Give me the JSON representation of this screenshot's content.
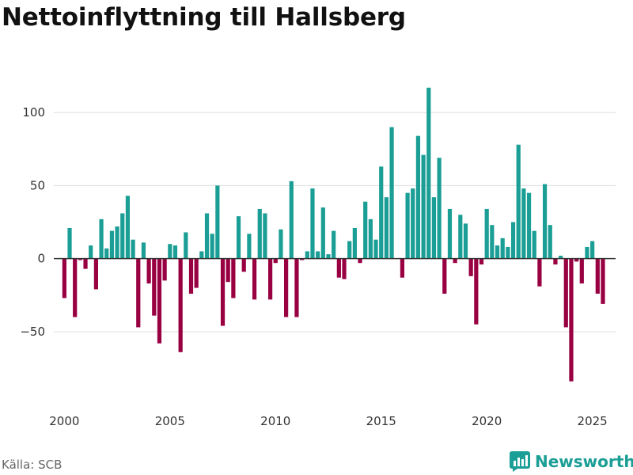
{
  "header": {
    "title": "Nettoinflyttning till Hallsberg"
  },
  "footer": {
    "source": "Källa: SCB",
    "brand": "Newsworthy"
  },
  "colors": {
    "positive": "#1a9e95",
    "negative": "#990042",
    "grid": "#dddddd",
    "zero_line": "#333333",
    "axis_text": "#333333"
  },
  "chart_data": {
    "type": "bar",
    "title": "Nettoinflyttning till Hallsberg",
    "xlabel": "",
    "ylabel": "",
    "ylim": [
      -95,
      125
    ],
    "yticks": [
      -50,
      0,
      50,
      100
    ],
    "ytick_labels": [
      "−50",
      "0",
      "50",
      "100"
    ],
    "xlim": [
      1999.5,
      2026.1
    ],
    "xticks": [
      2000,
      2005,
      2010,
      2015,
      2020,
      2025
    ],
    "xtick_labels": [
      "2000",
      "2005",
      "2010",
      "2015",
      "2020",
      "2025"
    ],
    "grid": true,
    "frequency": "quarterly",
    "start": 2000,
    "values": [
      -27,
      21,
      -40,
      -1,
      -7,
      9,
      -21,
      27,
      7,
      19,
      22,
      31,
      43,
      13,
      -47,
      11,
      -17,
      -39,
      -58,
      -15,
      10,
      9,
      -64,
      18,
      -24,
      -20,
      5,
      31,
      17,
      50,
      -46,
      -16,
      -27,
      29,
      -9,
      17,
      -28,
      34,
      31,
      -28,
      -3,
      20,
      -40,
      53,
      -40,
      -1,
      5,
      48,
      5,
      35,
      3,
      19,
      -13,
      -14,
      12,
      21,
      -3,
      39,
      27,
      13,
      63,
      42,
      90,
      0,
      -13,
      45,
      48,
      84,
      71,
      117,
      42,
      69,
      -24,
      34,
      -3,
      30,
      24,
      -12,
      -45,
      -4,
      34,
      23,
      9,
      14,
      8,
      25,
      78,
      48,
      45,
      19,
      -19,
      51,
      23,
      -4,
      2,
      -47,
      -84,
      -2,
      -17,
      8,
      12,
      -24,
      -31
    ]
  }
}
